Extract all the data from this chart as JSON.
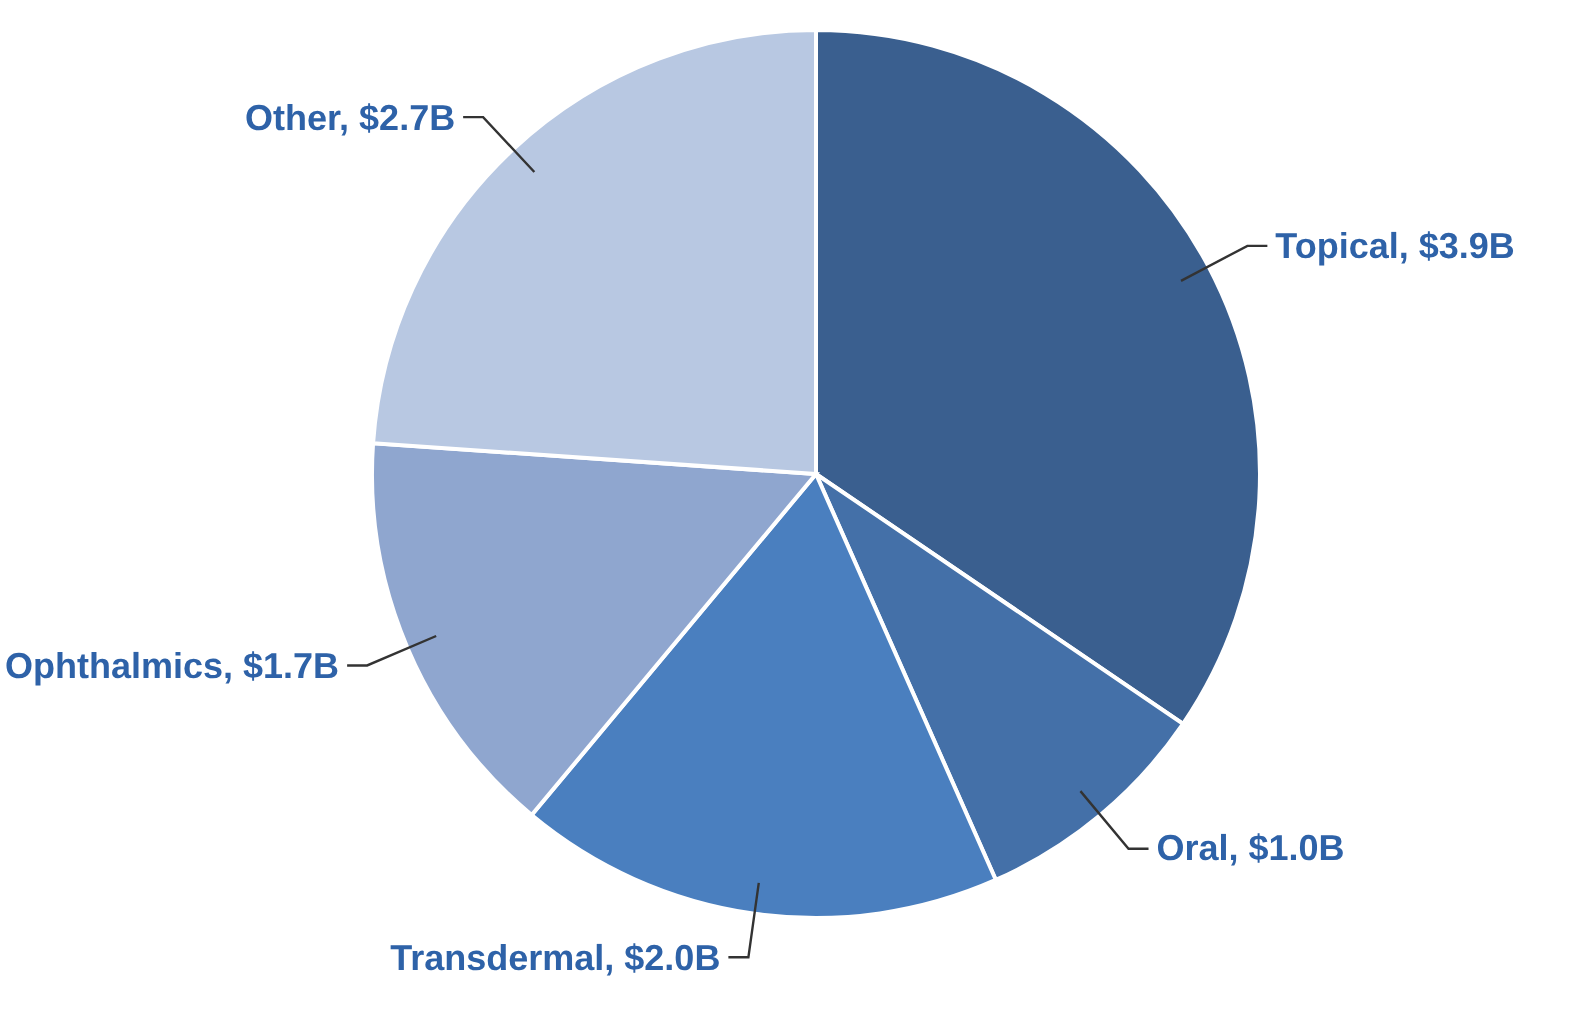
{
  "chart_data": {
    "type": "pie",
    "categories": [
      "Topical",
      "Oral",
      "Transdermal",
      "Ophthalmics",
      "Other"
    ],
    "values": [
      3.9,
      1.0,
      2.0,
      1.7,
      2.7
    ],
    "value_labels": [
      "$3.9B",
      "$1.0B",
      "$2.0B",
      "$1.7B",
      "$2.7B"
    ],
    "colors": [
      "#3a5f8f",
      "#4470a8",
      "#4a7fbf",
      "#8fa6cf",
      "#b8c8e2"
    ]
  }
}
